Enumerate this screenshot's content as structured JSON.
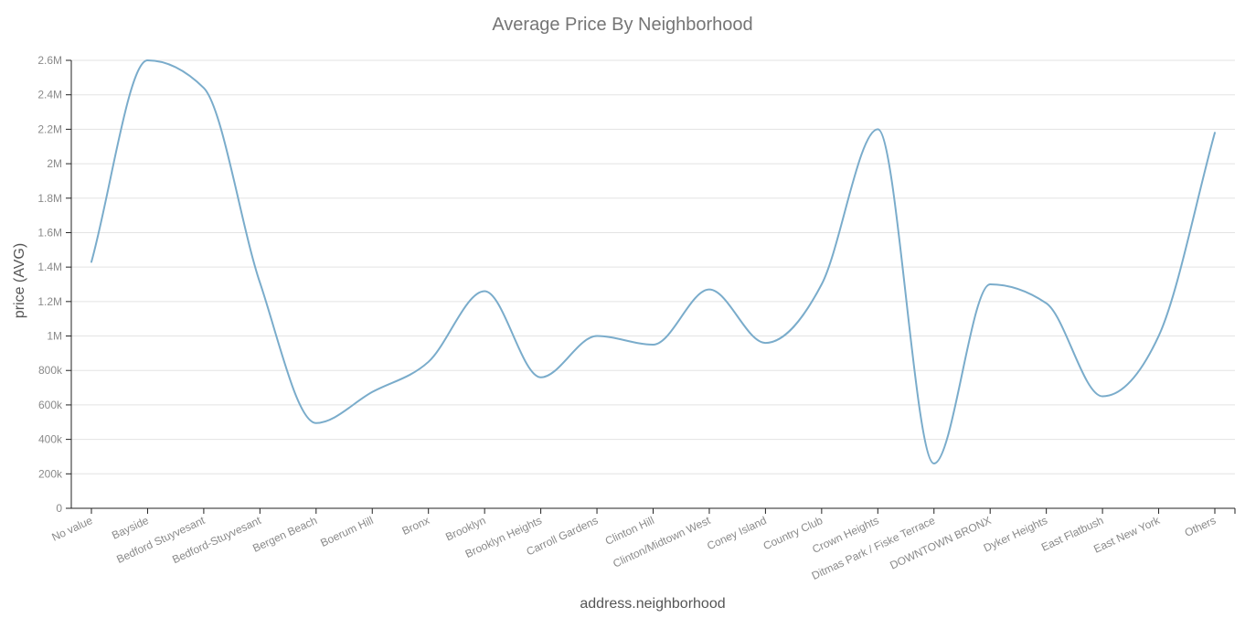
{
  "chart_data": {
    "type": "line",
    "title": "Average Price By Neighborhood",
    "xlabel": "address.neighborhood",
    "ylabel": "price (AVG)",
    "ylim": [
      0,
      2600000
    ],
    "yticks": [
      0,
      200000,
      400000,
      600000,
      800000,
      1000000,
      1200000,
      1400000,
      1600000,
      1800000,
      2000000,
      2200000,
      2400000,
      2600000
    ],
    "ytick_labels": [
      "0",
      "200k",
      "400k",
      "600k",
      "800k",
      "1M",
      "1.2M",
      "1.4M",
      "1.6M",
      "1.8M",
      "2M",
      "2.2M",
      "2.4M",
      "2.6M"
    ],
    "grid": true,
    "line_color": "#7aaccb",
    "categories": [
      "No value",
      "Bayside",
      "Bedford Stuyvesant",
      "Bedford-Stuyvesant",
      "Bergen Beach",
      "Boerum Hill",
      "Bronx",
      "Brooklyn",
      "Brooklyn Heights",
      "Carroll Gardens",
      "Clinton Hill",
      "Clinton/Midtown West",
      "Coney Island",
      "Country Club",
      "Crown Heights",
      "Ditmas Park / Fiske Terrace",
      "DOWNTOWN BRONX",
      "Dyker Heights",
      "East Flatbush",
      "East New York",
      "Others"
    ],
    "series": [
      {
        "values": [
          1430000,
          2600000,
          2440000,
          1310000,
          495000,
          675000,
          850000,
          1260000,
          760000,
          1000000,
          950000,
          1270000,
          960000,
          1300000,
          2200000,
          260000,
          1300000,
          1190000,
          650000,
          1000000,
          2180000
        ]
      }
    ]
  }
}
